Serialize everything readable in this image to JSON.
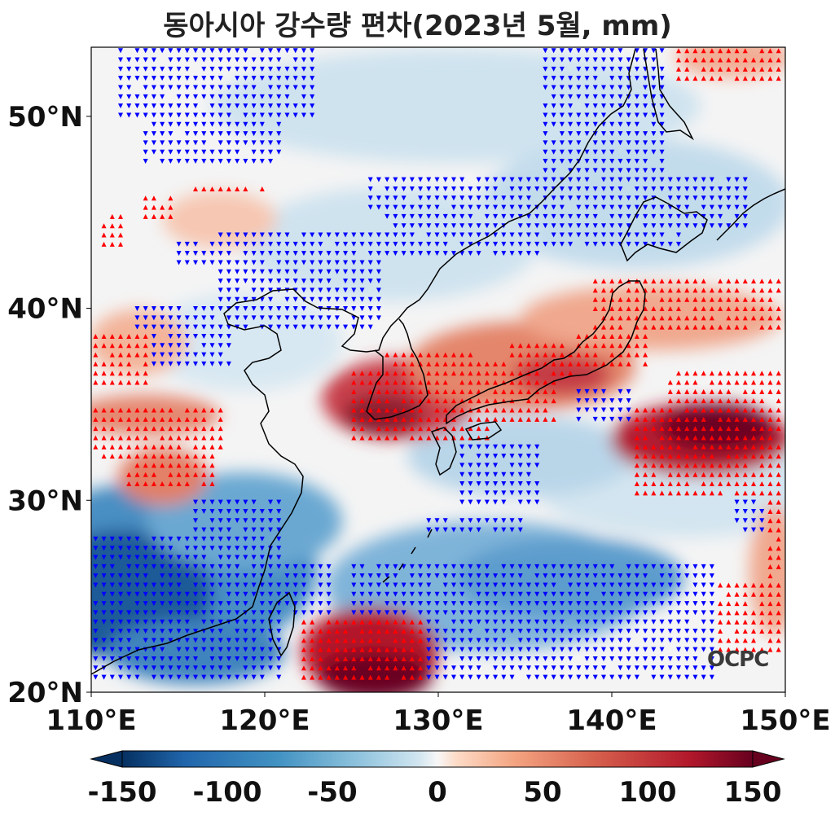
{
  "title": "동아시아 강수량 편차(2023년 5월, mm)",
  "map": {
    "lon_range": [
      110,
      150
    ],
    "lat_range": [
      20,
      53.6
    ],
    "x_ticks": [
      "110°E",
      "120°E",
      "130°E",
      "140°E",
      "150°E"
    ],
    "y_ticks": [
      "20°N",
      "30°N",
      "40°N",
      "50°N"
    ],
    "colormap": "RdBu_r",
    "wet_marker_color": "#ff0000",
    "dry_marker_color": "#0000ff"
  },
  "colorbar": {
    "ticks": [
      "-150",
      "-100",
      "-50",
      "0",
      "50",
      "100",
      "150"
    ],
    "range": [
      -150,
      150
    ],
    "extend": "both"
  },
  "logo": "OCPC"
}
